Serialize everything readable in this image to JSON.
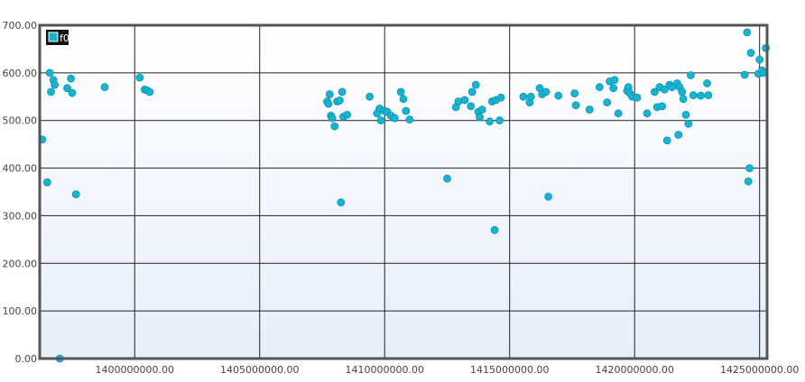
{
  "chart_data": {
    "type": "scatter",
    "title": "",
    "xlabel": "",
    "ylabel": "",
    "xlim": [
      1396200000,
      1425300000
    ],
    "ylim": [
      0,
      700
    ],
    "grid": true,
    "legend_position": "top-left",
    "x_ticks": [
      {
        "value": 1400000000,
        "label": "1400000000.00"
      },
      {
        "value": 1405000000,
        "label": "1405000000.00"
      },
      {
        "value": 1410000000,
        "label": "1410000000.00"
      },
      {
        "value": 1415000000,
        "label": "1415000000.00"
      },
      {
        "value": 1420000000,
        "label": "1420000000.00"
      },
      {
        "value": 1425000000,
        "label": "1425000000.00"
      }
    ],
    "y_ticks": [
      {
        "value": 0,
        "label": "0.00"
      },
      {
        "value": 100,
        "label": "100.00"
      },
      {
        "value": 200,
        "label": "200.00"
      },
      {
        "value": 300,
        "label": "300.00"
      },
      {
        "value": 400,
        "label": "400.00"
      },
      {
        "value": 500,
        "label": "500.00"
      },
      {
        "value": 600,
        "label": "600.00"
      },
      {
        "value": 700,
        "label": "700.00"
      }
    ],
    "colors": {
      "series": "#17b3d2",
      "legend_bg": "#111111",
      "frame": "#555555",
      "grid": "#222222"
    },
    "series": [
      {
        "name": "f0",
        "points": [
          [
            1396300000,
            460
          ],
          [
            1396500000,
            370
          ],
          [
            1396600000,
            600
          ],
          [
            1396650000,
            560
          ],
          [
            1396750000,
            585
          ],
          [
            1396800000,
            575
          ],
          [
            1397000000,
            0
          ],
          [
            1397300000,
            568
          ],
          [
            1397450000,
            588
          ],
          [
            1397500000,
            558
          ],
          [
            1397650000,
            345
          ],
          [
            1398800000,
            570
          ],
          [
            1400200000,
            590
          ],
          [
            1400400000,
            565
          ],
          [
            1400500000,
            563
          ],
          [
            1400600000,
            560
          ],
          [
            1407700000,
            540
          ],
          [
            1407750000,
            535
          ],
          [
            1407800000,
            555
          ],
          [
            1407850000,
            510
          ],
          [
            1407900000,
            505
          ],
          [
            1408000000,
            488
          ],
          [
            1408100000,
            540
          ],
          [
            1408200000,
            542
          ],
          [
            1408250000,
            328
          ],
          [
            1408300000,
            560
          ],
          [
            1408350000,
            508
          ],
          [
            1408500000,
            512
          ],
          [
            1409400000,
            550
          ],
          [
            1409700000,
            515
          ],
          [
            1409800000,
            525
          ],
          [
            1409850000,
            500
          ],
          [
            1410000000,
            520
          ],
          [
            1410100000,
            518
          ],
          [
            1410250000,
            510
          ],
          [
            1410400000,
            505
          ],
          [
            1410650000,
            560
          ],
          [
            1410750000,
            545
          ],
          [
            1410850000,
            520
          ],
          [
            1411000000,
            502
          ],
          [
            1412500000,
            378
          ],
          [
            1412850000,
            528
          ],
          [
            1412950000,
            540
          ],
          [
            1413200000,
            543
          ],
          [
            1413450000,
            530
          ],
          [
            1413500000,
            560
          ],
          [
            1413650000,
            575
          ],
          [
            1413750000,
            518
          ],
          [
            1413800000,
            507
          ],
          [
            1413900000,
            523
          ],
          [
            1414200000,
            498
          ],
          [
            1414300000,
            540
          ],
          [
            1414400000,
            270
          ],
          [
            1414450000,
            543
          ],
          [
            1414600000,
            500
          ],
          [
            1414650000,
            548
          ],
          [
            1415550000,
            550
          ],
          [
            1415800000,
            538
          ],
          [
            1415850000,
            550
          ],
          [
            1416200000,
            568
          ],
          [
            1416300000,
            555
          ],
          [
            1416450000,
            560
          ],
          [
            1416550000,
            340
          ],
          [
            1416950000,
            552
          ],
          [
            1417600000,
            557
          ],
          [
            1417650000,
            532
          ],
          [
            1418200000,
            523
          ],
          [
            1418600000,
            570
          ],
          [
            1418900000,
            538
          ],
          [
            1419000000,
            582
          ],
          [
            1419150000,
            568
          ],
          [
            1419200000,
            585
          ],
          [
            1419350000,
            515
          ],
          [
            1419700000,
            562
          ],
          [
            1419750000,
            570
          ],
          [
            1419800000,
            558
          ],
          [
            1419900000,
            550
          ],
          [
            1420100000,
            548
          ],
          [
            1420500000,
            515
          ],
          [
            1420800000,
            560
          ],
          [
            1420900000,
            528
          ],
          [
            1421000000,
            570
          ],
          [
            1421100000,
            530
          ],
          [
            1421200000,
            565
          ],
          [
            1421300000,
            458
          ],
          [
            1421400000,
            575
          ],
          [
            1421500000,
            570
          ],
          [
            1421700000,
            578
          ],
          [
            1421750000,
            470
          ],
          [
            1421800000,
            570
          ],
          [
            1421900000,
            560
          ],
          [
            1421950000,
            545
          ],
          [
            1422050000,
            512
          ],
          [
            1422150000,
            493
          ],
          [
            1422250000,
            595
          ],
          [
            1422350000,
            553
          ],
          [
            1422650000,
            552
          ],
          [
            1422900000,
            578
          ],
          [
            1422950000,
            553
          ],
          [
            1424400000,
            596
          ],
          [
            1424500000,
            685
          ],
          [
            1424550000,
            372
          ],
          [
            1424600000,
            400
          ],
          [
            1424650000,
            642
          ],
          [
            1424950000,
            598
          ],
          [
            1425000000,
            628
          ],
          [
            1425100000,
            605
          ],
          [
            1425150000,
            600
          ],
          [
            1425250000,
            652
          ]
        ]
      }
    ]
  }
}
